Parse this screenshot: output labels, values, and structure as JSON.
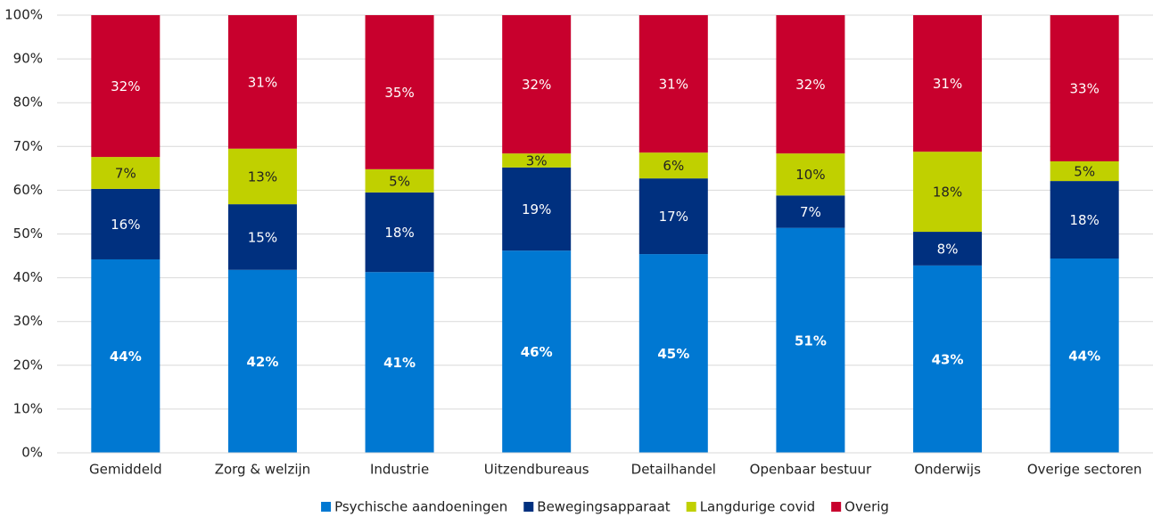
{
  "chart_data": {
    "type": "stacked_bar",
    "categories": [
      "Gemiddeld",
      "Zorg & welzijn",
      "Industrie",
      "Uitzendbureaus",
      "Detailhandel",
      "Openbaar bestuur",
      "Onderwijs",
      "Overige sectoren"
    ],
    "series": [
      {
        "name": "Psychische aandoeningen",
        "color": "#0078d2",
        "values": [
          44.2,
          41.8,
          41.3,
          46.2,
          45.4,
          51.4,
          42.8,
          44.4
        ],
        "value_labels": [
          "44%",
          "42%",
          "41%",
          "46%",
          "45%",
          "51%",
          "43%",
          "44%"
        ]
      },
      {
        "name": "Bewegingsapparaat",
        "color": "#00307f",
        "values": [
          16.1,
          15.0,
          18.2,
          19.0,
          17.3,
          7.4,
          7.7,
          17.7
        ],
        "value_labels": [
          "16%",
          "15%",
          "18%",
          "19%",
          "17%",
          "7%",
          "8%",
          "18%"
        ]
      },
      {
        "name": "Langdurige covid",
        "color": "#c0d000",
        "values": [
          7.3,
          12.7,
          5.3,
          3.2,
          5.9,
          9.6,
          18.3,
          4.5
        ],
        "value_labels": [
          "7%",
          "13%",
          "5%",
          "3%",
          "6%",
          "10%",
          "18%",
          "5%"
        ]
      },
      {
        "name": "Overig",
        "color": "#c8002d",
        "values": [
          32.4,
          30.5,
          35.2,
          31.6,
          31.4,
          31.6,
          31.2,
          33.4
        ],
        "value_labels": [
          "32%",
          "31%",
          "35%",
          "32%",
          "31%",
          "32%",
          "31%",
          "33%"
        ]
      }
    ],
    "ylim": [
      0,
      100
    ],
    "yticks": [
      {
        "value": 0,
        "label": "0%"
      },
      {
        "value": 10,
        "label": "10%"
      },
      {
        "value": 20,
        "label": "20%"
      },
      {
        "value": 30,
        "label": "30%"
      },
      {
        "value": 40,
        "label": "40%"
      },
      {
        "value": 50,
        "label": "50%"
      },
      {
        "value": 60,
        "label": "60%"
      },
      {
        "value": 70,
        "label": "70%"
      },
      {
        "value": 80,
        "label": "80%"
      },
      {
        "value": 90,
        "label": "90%"
      },
      {
        "value": 100,
        "label": "100%"
      }
    ],
    "grid": true,
    "legend": "bottom"
  }
}
